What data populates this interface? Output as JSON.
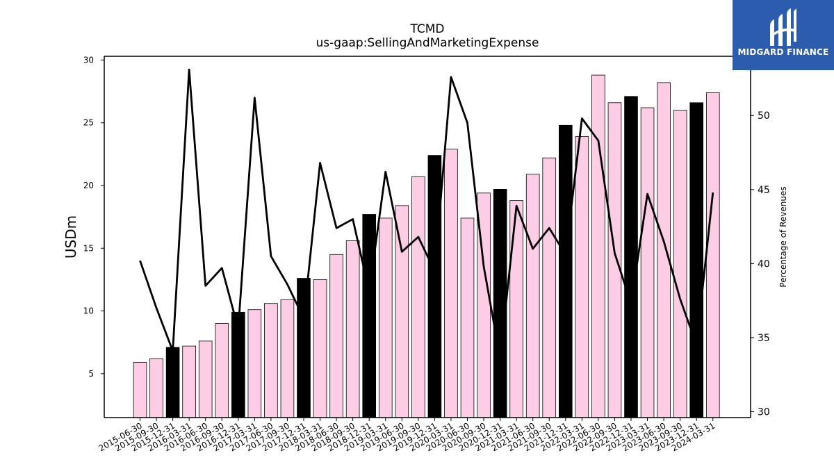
{
  "title": "TCMD",
  "subtitle": "us-gaap:SellingAndMarketingExpense",
  "brand": {
    "name": "MIDGARD FINANCE",
    "color": "#2b5cae"
  },
  "chart_data": {
    "type": "bar",
    "categories": [
      "2015-06-30",
      "2015-09-30",
      "2015-12-31",
      "2016-03-31",
      "2016-06-30",
      "2016-09-30",
      "2016-12-31",
      "2017-03-31",
      "2017-06-30",
      "2017-09-30",
      "2017-12-31",
      "2018-03-31",
      "2018-06-30",
      "2018-09-30",
      "2018-12-31",
      "2019-03-31",
      "2019-06-30",
      "2019-09-30",
      "2019-12-31",
      "2020-03-31",
      "2020-06-30",
      "2020-09-30",
      "2020-12-31",
      "2021-03-31",
      "2021-06-30",
      "2021-09-30",
      "2021-12-31",
      "2022-03-31",
      "2022-06-30",
      "2022-09-30",
      "2022-12-31",
      "2023-03-31",
      "2023-06-30",
      "2023-09-30",
      "2023-12-31",
      "2024-03-31"
    ],
    "series": [
      {
        "axis": "left",
        "kind": "bar",
        "values": [
          5.9,
          6.2,
          7.1,
          7.2,
          7.6,
          9.0,
          9.9,
          10.1,
          10.6,
          10.9,
          12.6,
          12.5,
          14.5,
          15.6,
          17.7,
          17.4,
          18.4,
          20.7,
          22.4,
          22.9,
          17.4,
          19.4,
          19.7,
          18.8,
          20.9,
          22.2,
          24.8,
          23.9,
          28.8,
          26.6,
          27.1,
          26.2,
          28.2,
          26.0,
          26.6,
          27.4
        ],
        "highlight": [
          false,
          false,
          true,
          false,
          false,
          false,
          true,
          false,
          false,
          false,
          true,
          false,
          false,
          false,
          true,
          false,
          false,
          false,
          true,
          false,
          false,
          false,
          true,
          false,
          false,
          false,
          true,
          false,
          false,
          false,
          true,
          false,
          false,
          false,
          true,
          false
        ],
        "colors": {
          "normal": "#fccde5",
          "highlight": "#000000"
        }
      },
      {
        "axis": "right",
        "kind": "line",
        "values": [
          40.2,
          37.0,
          34.1,
          53.1,
          38.5,
          39.7,
          35.6,
          51.2,
          40.5,
          38.6,
          36.3,
          46.8,
          42.4,
          43.0,
          38.1,
          46.2,
          40.8,
          41.8,
          39.5,
          52.6,
          49.5,
          39.8,
          33.6,
          43.9,
          41.0,
          42.4,
          40.6,
          49.8,
          48.3,
          40.7,
          37.3,
          44.7,
          41.5,
          37.6,
          34.5,
          44.8
        ],
        "color": "#000000"
      }
    ],
    "ylabel": "USDm",
    "y2label": "Percentage of Revenues",
    "ylim": [
      1.5,
      30.3
    ],
    "y2lim": [
      29.6,
      54.0
    ],
    "yticks": [
      5,
      10,
      15,
      20,
      25,
      30
    ],
    "y2ticks": [
      30,
      35,
      40,
      45,
      50
    ],
    "grid": false,
    "legend": "none"
  }
}
